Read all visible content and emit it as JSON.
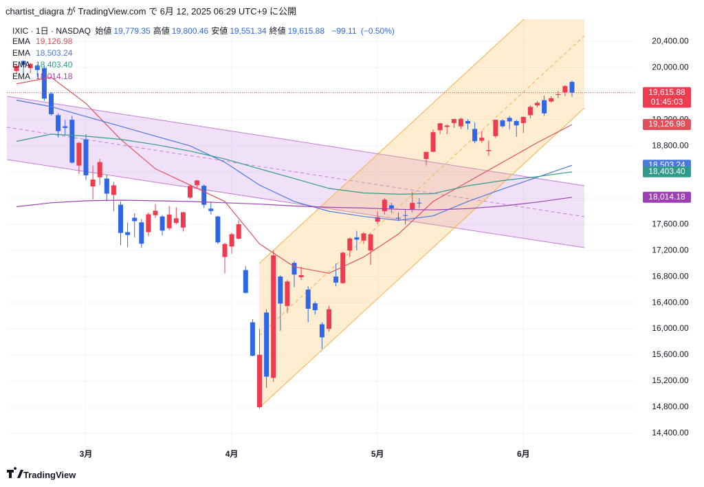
{
  "header": {
    "published": "chartist_diagra が TradingView.com で 6月 12, 2025 06:29 UTC+9 に公開"
  },
  "footer": {
    "brand": "TradingView"
  },
  "chart_data": {
    "type": "candlestick",
    "symbol": "IXIC · 1日 · NASDAQ",
    "ohlc_legend": [
      {
        "name": "始値",
        "value": 19779.35,
        "label": "19,779.35"
      },
      {
        "name": "高値",
        "value": 19800.46,
        "label": "19,800.46"
      },
      {
        "name": "安値",
        "value": 19551.34,
        "label": "19,551.34"
      },
      {
        "name": "終値",
        "value": 19615.88,
        "label": "19,615.88"
      }
    ],
    "change": {
      "value": -99.11,
      "label": "−99.11"
    },
    "change_pct": {
      "value": -0.5,
      "label": "(−0.50%)"
    },
    "countdown": "01:45:03",
    "up_color": "#ef3b4f",
    "down_color": "#2f66e8",
    "categories": [
      null,
      null,
      null,
      null,
      null,
      null,
      null,
      null,
      null,
      null,
      "3月",
      null,
      null,
      null,
      null,
      null,
      null,
      null,
      null,
      null,
      null,
      null,
      null,
      null,
      null,
      null,
      null,
      null,
      null,
      null,
      null,
      "4月",
      null,
      null,
      null,
      null,
      null,
      null,
      null,
      null,
      null,
      null,
      null,
      null,
      null,
      null,
      null,
      null,
      null,
      null,
      null,
      null,
      "5月",
      null,
      null,
      null,
      null,
      null,
      null,
      null,
      null,
      null,
      null,
      null,
      null,
      null,
      null,
      null,
      null,
      null,
      null,
      null,
      null,
      "6月",
      null,
      null,
      null,
      null,
      null,
      null,
      null
    ],
    "open": [
      19946,
      20100,
      19990,
      20030,
      19990,
      19600,
      19270,
      19100,
      19200,
      18500,
      18900,
      18180,
      18320,
      18300,
      18050,
      17900,
      17480,
      17700,
      17630,
      17480,
      17740,
      17720,
      17540,
      17620,
      17550,
      18010,
      18200,
      18190,
      17840,
      17720,
      17100,
      17260,
      17380,
      16900,
      16100,
      14800,
      16250,
      15250,
      16800,
      16350,
      17010,
      16790,
      16600,
      16390,
      16070,
      16000,
      16800,
      16700,
      17200,
      17400,
      17350,
      17200,
      17640,
      17800,
      17890,
      17700,
      17740,
      17830,
      17930,
      18600,
      18710,
      19040,
      19090,
      19150,
      19100,
      19180,
      19060,
      18880,
      18720,
      18950,
      19190,
      19230,
      19180,
      19150,
      19270,
      19420,
      19500,
      19480,
      19580,
      19620,
      19779.35
    ],
    "high": [
      20046,
      20110,
      20070,
      20050,
      20017,
      19620,
      19300,
      19200,
      19260,
      18860,
      18980,
      18500,
      18600,
      18360,
      18250,
      17950,
      17630,
      17770,
      17680,
      17780,
      17910,
      17740,
      17880,
      17860,
      17790,
      18210,
      18280,
      18210,
      17950,
      17730,
      17320,
      17470,
      17660,
      16960,
      16150,
      16000,
      16300,
      17200,
      16820,
      16750,
      17040,
      16950,
      16650,
      16420,
      16100,
      16350,
      17000,
      17180,
      17400,
      17500,
      17480,
      17460,
      17800,
      18000,
      17930,
      17780,
      17830,
      18100,
      18000,
      18710,
      19050,
      19150,
      19130,
      19210,
      19230,
      19210,
      19160,
      19030,
      18880,
      19200,
      19210,
      19260,
      19200,
      19250,
      19420,
      19490,
      19570,
      19560,
      19640,
      19730,
      19800.46
    ],
    "low": [
      19900,
      19900,
      19910,
      19850,
      19490,
      19260,
      18930,
      18960,
      18530,
      18370,
      18280,
      17980,
      18200,
      17950,
      17800,
      17280,
      17250,
      17400,
      17240,
      17420,
      17700,
      17430,
      17510,
      17600,
      17490,
      17990,
      18150,
      17850,
      17750,
      17300,
      16850,
      17150,
      17370,
      16540,
      15580,
      14780,
      15100,
      15190,
      15970,
      16240,
      16640,
      16750,
      16100,
      16220,
      15690,
      15960,
      16650,
      16690,
      17100,
      17200,
      17300,
      16980,
      17600,
      17750,
      17780,
      17650,
      17600,
      17780,
      17850,
      18500,
      18700,
      18980,
      18980,
      19080,
      19060,
      19050,
      18840,
      18850,
      18650,
      18920,
      19080,
      19050,
      18940,
      19000,
      19220,
      19390,
      19260,
      19460,
      19530,
      19560,
      19551.34
    ],
    "close": [
      20026,
      20041,
      20056,
      19962,
      19524,
      19286,
      19026,
      19075,
      18544,
      18847,
      18350,
      18285,
      18553,
      18069,
      18196,
      17468,
      17436,
      17648,
      17303,
      17754,
      17808,
      17504,
      17750,
      17692,
      17784,
      18188,
      18271,
      17899,
      17804,
      17323,
      17299,
      17449,
      17601,
      16551,
      15588,
      15603,
      15268,
      17125,
      16387,
      16724,
      16831,
      16823,
      16307,
      16286,
      15870,
      16300,
      16708,
      17166,
      17383,
      17366,
      17461,
      17446,
      17710,
      17978,
      17844,
      17690,
      17738,
      17928,
      17929,
      18708,
      19010,
      19146,
      19112,
      19211,
      19215,
      19143,
      18872,
      18925,
      18737,
      19199,
      19100,
      19175,
      19114,
      19243,
      19398,
      19460,
      19298,
      19530,
      19591,
      19715,
      19615.88
    ],
    "last_price_label": "19,615.88",
    "series": [
      {
        "name": "EMA",
        "color": "#e0505a",
        "last_label": "19,126.98",
        "x": [
          0,
          5,
          10,
          15,
          20,
          25,
          30,
          35,
          40,
          45,
          50,
          55,
          60,
          65,
          70,
          75,
          80
        ],
        "values": [
          19750,
          19850,
          19450,
          18900,
          18450,
          18200,
          17950,
          17300,
          16950,
          16850,
          17100,
          17450,
          17950,
          18250,
          18550,
          18850,
          19126.98
        ]
      },
      {
        "name": "EMA",
        "color": "#4a78e0",
        "last_label": "18,503.24",
        "x": [
          0,
          5,
          10,
          15,
          20,
          25,
          30,
          35,
          40,
          45,
          50,
          55,
          60,
          65,
          70,
          75,
          80
        ],
        "values": [
          19500,
          19400,
          19250,
          19100,
          18950,
          18800,
          18550,
          18200,
          17950,
          17800,
          17720,
          17660,
          17730,
          17950,
          18140,
          18320,
          18503.24
        ]
      },
      {
        "name": "EMA",
        "color": "#2e9a8a",
        "last_label": "18,403.40",
        "x": [
          0,
          5,
          10,
          15,
          20,
          25,
          30,
          35,
          40,
          45,
          50,
          55,
          60,
          65,
          70,
          75,
          80
        ],
        "values": [
          18870,
          18980,
          18950,
          18900,
          18820,
          18720,
          18600,
          18450,
          18300,
          18150,
          18080,
          18060,
          18070,
          18190,
          18270,
          18330,
          18403.4
        ]
      },
      {
        "name": "EMA",
        "color": "#9c3fb0",
        "last_label": "18,014.18",
        "x": [
          0,
          5,
          10,
          15,
          20,
          25,
          30,
          35,
          40,
          45,
          50,
          55,
          60,
          65,
          70,
          75,
          80
        ],
        "values": [
          17870,
          17930,
          17960,
          17970,
          17960,
          17950,
          17930,
          17910,
          17880,
          17860,
          17850,
          17830,
          17820,
          17840,
          17880,
          17940,
          18014.18
        ]
      }
    ],
    "ylim": [
      14190,
      20770
    ],
    "yticks": [
      {
        "value": 14400,
        "label": "14,400.00"
      },
      {
        "value": 14800,
        "label": "14,800.00"
      },
      {
        "value": 15200,
        "label": "15,200.00"
      },
      {
        "value": 15600,
        "label": "15,600.00"
      },
      {
        "value": 16000,
        "label": "16,000.00"
      },
      {
        "value": 16400,
        "label": "16,400.00"
      },
      {
        "value": 16800,
        "label": "16,800.00"
      },
      {
        "value": 17200,
        "label": "17,200.00"
      },
      {
        "value": 17600,
        "label": "17,600.00"
      },
      {
        "value": 18000,
        "label": "18,000.00"
      },
      {
        "value": 18400,
        "label": "18,400.00"
      },
      {
        "value": 18800,
        "label": "18,800.00"
      },
      {
        "value": 19200,
        "label": "19,200.00"
      },
      {
        "value": 19600,
        "label": "19,600.00"
      },
      {
        "value": 20000,
        "label": "20,000.00"
      },
      {
        "value": 20400,
        "label": "20,400.00"
      }
    ],
    "grid": true
  }
}
